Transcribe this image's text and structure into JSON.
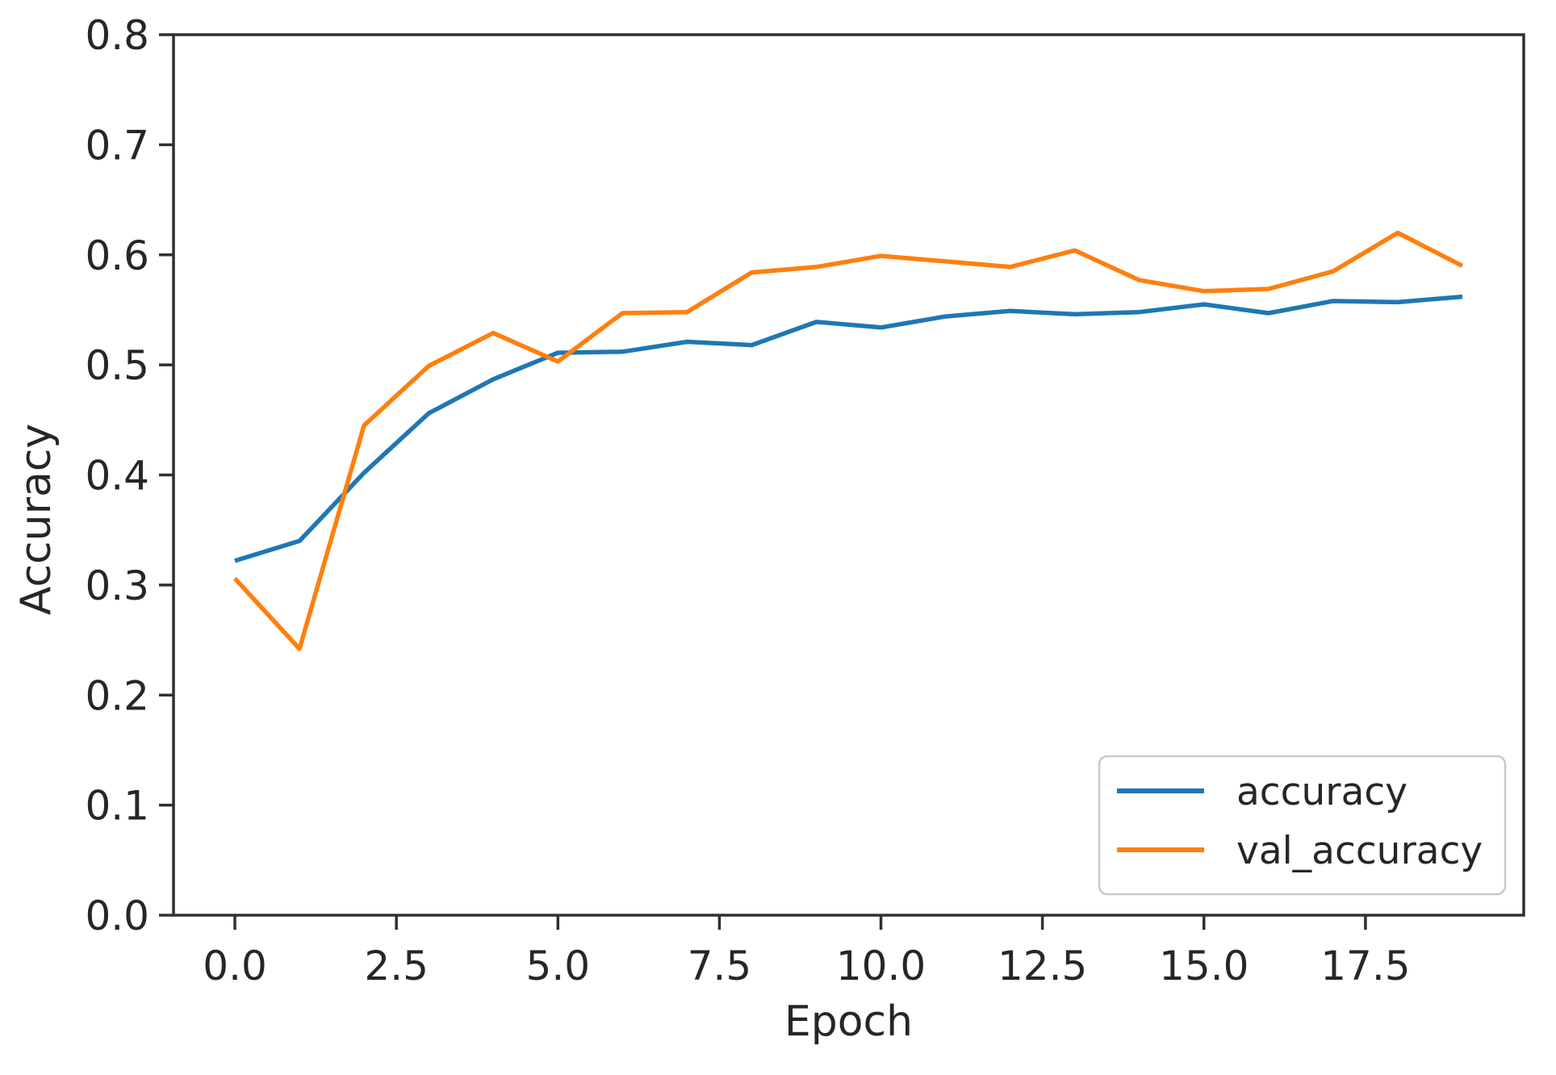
{
  "chart_data": {
    "type": "line",
    "title": "",
    "xlabel": "Epoch",
    "ylabel": "Accuracy",
    "x": [
      0,
      1,
      2,
      3,
      4,
      5,
      6,
      7,
      8,
      9,
      10,
      11,
      12,
      13,
      14,
      15,
      16,
      17,
      18,
      19
    ],
    "series": [
      {
        "name": "accuracy",
        "color": "#1f77b4",
        "values": [
          0.322,
          0.34,
          0.402,
          0.456,
          0.487,
          0.511,
          0.512,
          0.521,
          0.518,
          0.539,
          0.534,
          0.544,
          0.549,
          0.546,
          0.548,
          0.555,
          0.547,
          0.558,
          0.557,
          0.562
        ]
      },
      {
        "name": "val_accuracy",
        "color": "#ff7f0e",
        "values": [
          0.306,
          0.242,
          0.445,
          0.499,
          0.529,
          0.503,
          0.547,
          0.548,
          0.584,
          0.589,
          0.599,
          0.594,
          0.589,
          0.604,
          0.577,
          0.567,
          0.569,
          0.585,
          0.62,
          0.59
        ]
      }
    ],
    "xlim": [
      -0.95,
      19.95
    ],
    "ylim": [
      0.0,
      0.8
    ],
    "xticks": [
      0.0,
      2.5,
      5.0,
      7.5,
      10.0,
      12.5,
      15.0,
      17.5
    ],
    "xtick_labels": [
      "0.0",
      "2.5",
      "5.0",
      "7.5",
      "10.0",
      "12.5",
      "15.0",
      "17.5"
    ],
    "yticks": [
      0.0,
      0.1,
      0.2,
      0.3,
      0.4,
      0.5,
      0.6,
      0.7,
      0.8
    ],
    "ytick_labels": [
      "0.0",
      "0.1",
      "0.2",
      "0.3",
      "0.4",
      "0.5",
      "0.6",
      "0.7",
      "0.8"
    ],
    "grid": false,
    "legend": {
      "position": "lower right",
      "entries": [
        "accuracy",
        "val_accuracy"
      ]
    },
    "axis_color": "#303030",
    "text_color": "#262626",
    "legend_border_color": "#c9c9c9"
  }
}
